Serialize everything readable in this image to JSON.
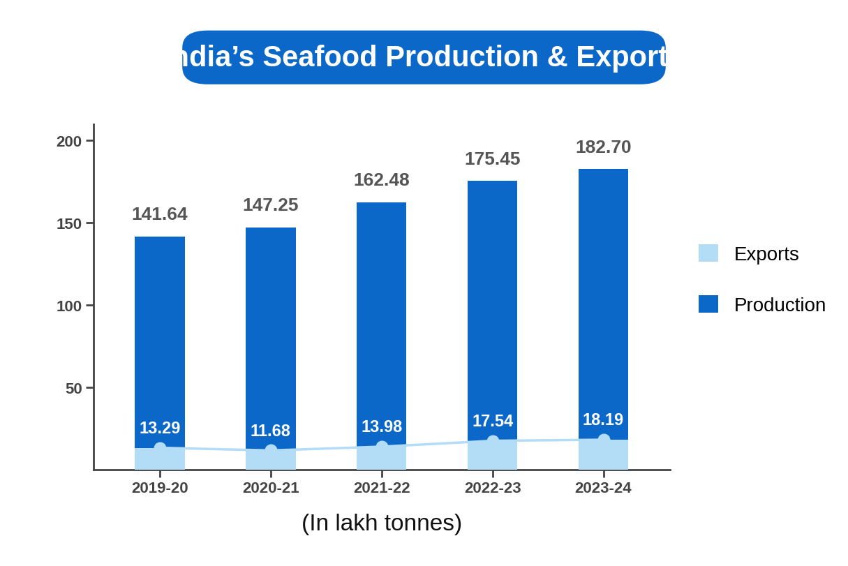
{
  "chart_data": {
    "type": "bar",
    "title": "India’s Seafood Production & Exports",
    "x_label": "(In lakh tonnes)",
    "categories": [
      "2019-20",
      "2020-21",
      "2021-22",
      "2022-23",
      "2023-24"
    ],
    "series": [
      {
        "name": "Exports",
        "color": "#b3dcf7",
        "marker": "o",
        "line_style": "solid",
        "values": [
          13.29,
          11.68,
          13.98,
          17.54,
          18.19
        ]
      },
      {
        "name": "Production",
        "color": "#0b68c8",
        "values": [
          141.64,
          147.25,
          162.48,
          175.45,
          182.7
        ]
      }
    ],
    "ylim": [
      0,
      210
    ],
    "yticks": [
      50,
      100,
      150,
      200
    ],
    "grid": false,
    "legend": "right",
    "data_labels": true
  }
}
